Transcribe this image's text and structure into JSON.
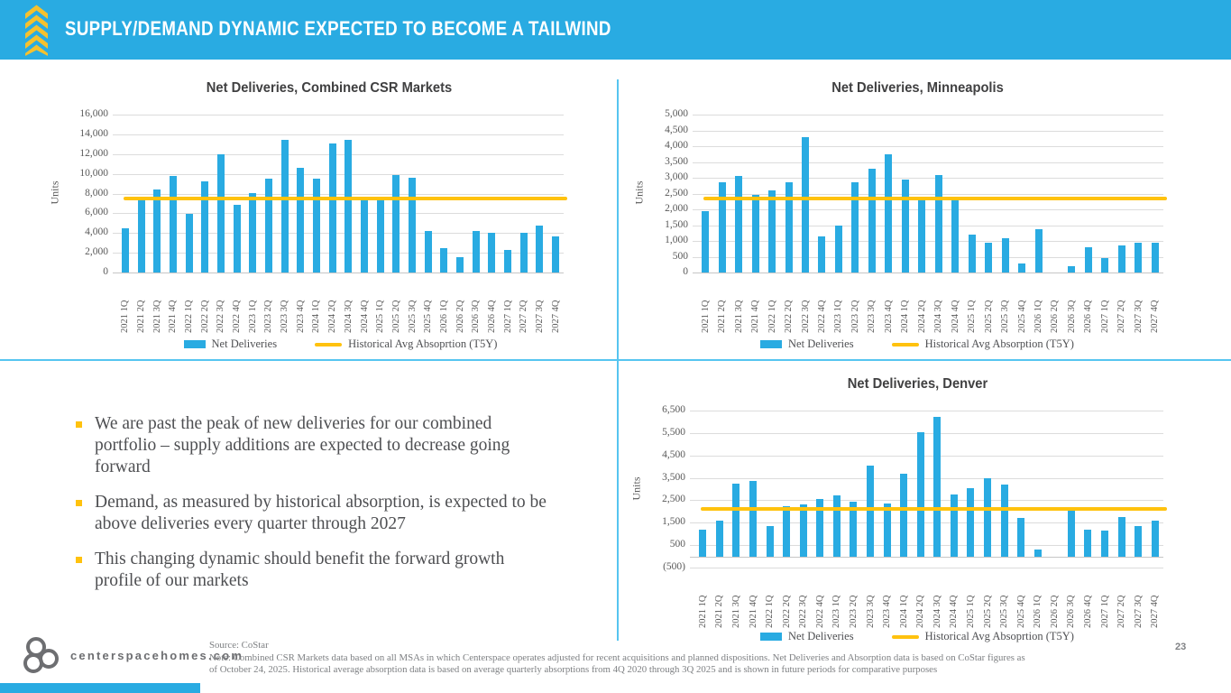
{
  "header": {
    "title": "SUPPLY/DEMAND DYNAMIC EXPECTED TO BECOME A TAILWIND"
  },
  "colors": {
    "accent_cyan": "#29ABE2",
    "accent_yellow": "#FFC20E",
    "divider_cyan": "#56C5F0",
    "text_dark": "#404041",
    "text_gray": "#595959",
    "logo_gray": "#6D6E71"
  },
  "bullets": [
    "We are past the peak of new deliveries for our combined portfolio – supply additions are expected to decrease going forward",
    "Demand, as measured by historical absorption, is expected to be above deliveries every quarter through 2027",
    "This changing dynamic should benefit the forward growth profile of our markets"
  ],
  "footer": {
    "website": "centerspacehomes.com",
    "source": "Source: CoStar",
    "note": "Note: Combined CSR Markets data based on all MSAs in which Centerspace operates adjusted for recent acquisitions and planned dispositions. Net Deliveries and Absorption data is based on CoStar figures as of October 24, 2025. Historical average absorption data is based on average quarterly absorptions from 4Q 2020 through 3Q 2025 and is shown in future periods for comparative purposes",
    "page_number": "23"
  },
  "chart_data": [
    {
      "type": "bar",
      "title": "Net Deliveries, Combined CSR Markets",
      "ylabel": "Units",
      "ylim": [
        0,
        16000
      ],
      "ytick_step": 2000,
      "grid": true,
      "legend_position": "bottom",
      "categories": [
        "2021 1Q",
        "2021 2Q",
        "2021 3Q",
        "2021 4Q",
        "2022 1Q",
        "2022 2Q",
        "2022 3Q",
        "2022 4Q",
        "2023 1Q",
        "2023 2Q",
        "2023 3Q",
        "2023 4Q",
        "2024 1Q",
        "2024 2Q",
        "2024 3Q",
        "2024 4Q",
        "2025 1Q",
        "2025 2Q",
        "2025 3Q",
        "2025 4Q",
        "2026 1Q",
        "2026 2Q",
        "2026 3Q",
        "2026 4Q",
        "2027 1Q",
        "2027 2Q",
        "2027 3Q",
        "2027 4Q"
      ],
      "series": [
        {
          "name": "Net Deliveries",
          "values": [
            4500,
            7700,
            8450,
            9800,
            5950,
            9250,
            11950,
            6900,
            8050,
            9550,
            13450,
            10600,
            9550,
            13050,
            13450,
            7450,
            7450,
            9850,
            9600,
            4250,
            2500,
            1600,
            4250,
            4000,
            2300,
            4000,
            4800,
            3650
          ]
        }
      ],
      "avg_line": {
        "name": "Historical Avg Absoprtion (T5Y)",
        "value": 7500
      }
    },
    {
      "type": "bar",
      "title": "Net Deliveries, Minneapolis",
      "ylabel": "Units",
      "ylim": [
        0,
        5000
      ],
      "ytick_step": 500,
      "grid": true,
      "legend_position": "bottom",
      "categories": [
        "2021 1Q",
        "2021 2Q",
        "2021 3Q",
        "2021 4Q",
        "2022 1Q",
        "2022 2Q",
        "2022 3Q",
        "2022 4Q",
        "2023 1Q",
        "2023 2Q",
        "2023 3Q",
        "2023 4Q",
        "2024 1Q",
        "2024 2Q",
        "2024 3Q",
        "2024 4Q",
        "2025 1Q",
        "2025 2Q",
        "2025 3Q",
        "2025 4Q",
        "2026 1Q",
        "2026 2Q",
        "2026 3Q",
        "2026 4Q",
        "2027 1Q",
        "2027 2Q",
        "2027 3Q",
        "2027 4Q"
      ],
      "series": [
        {
          "name": "Net Deliveries",
          "values": [
            1950,
            2850,
            3050,
            2450,
            2600,
            2850,
            4300,
            1150,
            1500,
            2850,
            3300,
            3750,
            2950,
            2350,
            3100,
            2300,
            1200,
            950,
            1100,
            300,
            1370,
            0,
            200,
            800,
            450,
            850,
            950,
            950
          ]
        }
      ],
      "avg_line": {
        "name": "Historical Avg Absorption (T5Y)",
        "value": 2330
      }
    },
    {
      "type": "bar",
      "title": "Net Deliveries, Denver",
      "ylabel": "Units",
      "ylim": [
        -500,
        6500
      ],
      "ytick_step": 1000,
      "grid": true,
      "legend_position": "bottom",
      "categories": [
        "2021 1Q",
        "2021 2Q",
        "2021 3Q",
        "2021 4Q",
        "2022 1Q",
        "2022 2Q",
        "2022 3Q",
        "2022 4Q",
        "2023 1Q",
        "2023 2Q",
        "2023 3Q",
        "2023 4Q",
        "2024 1Q",
        "2024 2Q",
        "2024 3Q",
        "2024 4Q",
        "2025 1Q",
        "2025 2Q",
        "2025 3Q",
        "2025 4Q",
        "2026 1Q",
        "2026 2Q",
        "2026 3Q",
        "2026 4Q",
        "2027 1Q",
        "2027 2Q",
        "2027 3Q",
        "2027 4Q"
      ],
      "series": [
        {
          "name": "Net Deliveries",
          "values": [
            1200,
            1600,
            3250,
            3350,
            1350,
            2250,
            2300,
            2550,
            2700,
            2450,
            4050,
            2350,
            3700,
            5550,
            6200,
            2750,
            3050,
            3500,
            3200,
            1700,
            300,
            0,
            2050,
            1200,
            1150,
            1750,
            1350,
            1600
          ]
        }
      ],
      "avg_line": {
        "name": "Historical Avg Absoprtion (T5Y)",
        "value": 2100
      }
    }
  ]
}
